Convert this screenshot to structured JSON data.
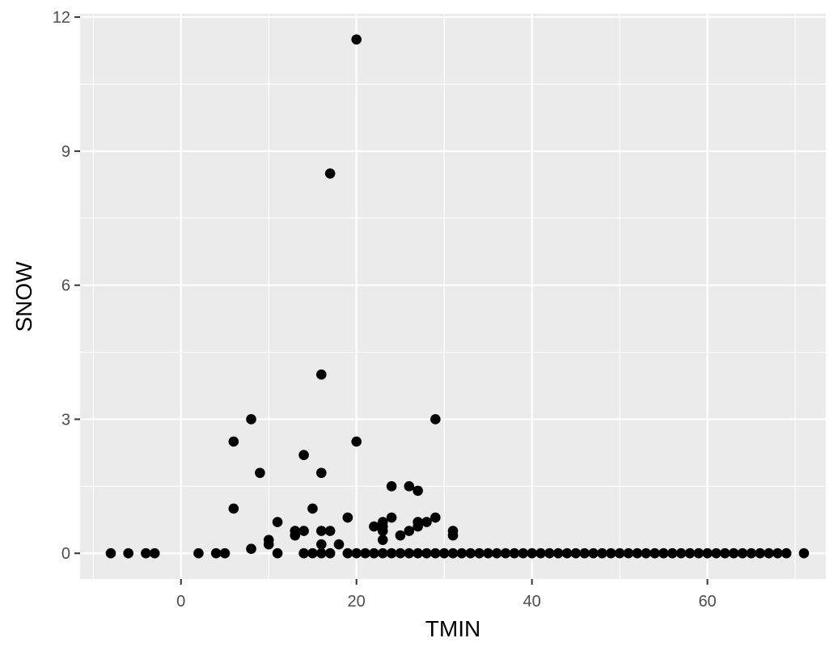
{
  "chart_data": {
    "type": "scatter",
    "title": "",
    "xlabel": "TMIN",
    "ylabel": "SNOW",
    "xlim": [
      -11.5,
      73.5
    ],
    "ylim": [
      -0.575,
      12.075
    ],
    "x_ticks": [
      0,
      20,
      40,
      60
    ],
    "y_ticks": [
      0,
      3,
      6,
      9,
      12
    ],
    "grid": true,
    "legend": "none",
    "colors": {
      "panel": "#ebebeb",
      "grid": "#ffffff",
      "point": "#000000",
      "tick_text": "#4d4d4d",
      "title_text": "#000000"
    },
    "points": [
      [
        -8,
        0
      ],
      [
        -6,
        0
      ],
      [
        -4,
        0
      ],
      [
        -3,
        0
      ],
      [
        2,
        0
      ],
      [
        4,
        0
      ],
      [
        5,
        0
      ],
      [
        6,
        2.5
      ],
      [
        6,
        1.0
      ],
      [
        8,
        3.0
      ],
      [
        8,
        0.1
      ],
      [
        9,
        1.8
      ],
      [
        10,
        0.3
      ],
      [
        10,
        0.2
      ],
      [
        11,
        0.7
      ],
      [
        11,
        0
      ],
      [
        13,
        0.5
      ],
      [
        13,
        0.4
      ],
      [
        14,
        2.2
      ],
      [
        14,
        0.5
      ],
      [
        14,
        0
      ],
      [
        15,
        1.0
      ],
      [
        15,
        0
      ],
      [
        16,
        4.0
      ],
      [
        16,
        1.8
      ],
      [
        16,
        0.5
      ],
      [
        16,
        0.2
      ],
      [
        16,
        0
      ],
      [
        17,
        8.5
      ],
      [
        17,
        0.5
      ],
      [
        17,
        0
      ],
      [
        18,
        0.2
      ],
      [
        19,
        0.8
      ],
      [
        19,
        0
      ],
      [
        20,
        11.5
      ],
      [
        20,
        2.5
      ],
      [
        20,
        0
      ],
      [
        21,
        0
      ],
      [
        22,
        0.6
      ],
      [
        22,
        0
      ],
      [
        23,
        0.7
      ],
      [
        23,
        0.6
      ],
      [
        23,
        0.5
      ],
      [
        23,
        0.3
      ],
      [
        23,
        0
      ],
      [
        24,
        1.5
      ],
      [
        24,
        0.8
      ],
      [
        24,
        0
      ],
      [
        25,
        0.4
      ],
      [
        25,
        0
      ],
      [
        26,
        1.5
      ],
      [
        26,
        0.5
      ],
      [
        26,
        0
      ],
      [
        27,
        1.4
      ],
      [
        27,
        0.7
      ],
      [
        27,
        0.6
      ],
      [
        27,
        0
      ],
      [
        28,
        0.7
      ],
      [
        28,
        0
      ],
      [
        29,
        3.0
      ],
      [
        29,
        0.8
      ],
      [
        29,
        0
      ],
      [
        30,
        0
      ],
      [
        31,
        0.5
      ],
      [
        31,
        0.4
      ],
      [
        31,
        0
      ],
      [
        32,
        0
      ],
      [
        33,
        0
      ],
      [
        34,
        0
      ],
      [
        35,
        0
      ],
      [
        36,
        0
      ],
      [
        37,
        0
      ],
      [
        38,
        0
      ],
      [
        39,
        0
      ],
      [
        40,
        0
      ],
      [
        41,
        0
      ],
      [
        42,
        0
      ],
      [
        43,
        0
      ],
      [
        44,
        0
      ],
      [
        45,
        0
      ],
      [
        46,
        0
      ],
      [
        47,
        0
      ],
      [
        48,
        0
      ],
      [
        49,
        0
      ],
      [
        50,
        0
      ],
      [
        51,
        0
      ],
      [
        52,
        0
      ],
      [
        53,
        0
      ],
      [
        54,
        0
      ],
      [
        55,
        0
      ],
      [
        56,
        0
      ],
      [
        57,
        0
      ],
      [
        58,
        0
      ],
      [
        59,
        0
      ],
      [
        60,
        0
      ],
      [
        61,
        0
      ],
      [
        62,
        0
      ],
      [
        63,
        0
      ],
      [
        64,
        0
      ],
      [
        65,
        0
      ],
      [
        66,
        0
      ],
      [
        67,
        0
      ],
      [
        68,
        0
      ],
      [
        69,
        0
      ],
      [
        71,
        0
      ]
    ]
  }
}
